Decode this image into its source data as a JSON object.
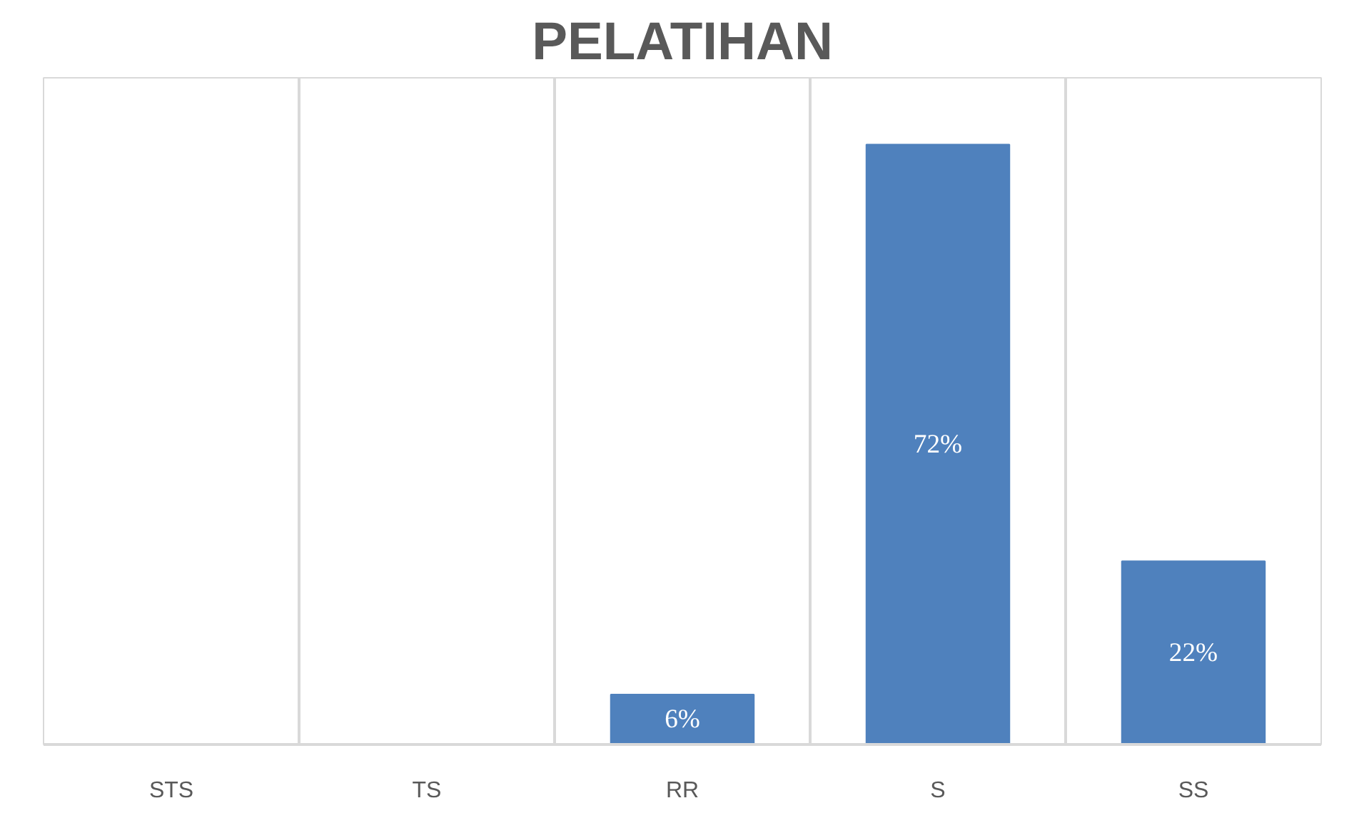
{
  "chart_data": {
    "type": "bar",
    "title": "PELATIHAN",
    "categories": [
      "STS",
      "TS",
      "RR",
      "S",
      "SS"
    ],
    "values": [
      0,
      0,
      6,
      72,
      22
    ],
    "color": "#4f81bd",
    "ylim": [
      0,
      80
    ],
    "grid": "x",
    "value_labels": [
      null,
      null,
      "6%",
      "72%",
      "22%"
    ]
  }
}
